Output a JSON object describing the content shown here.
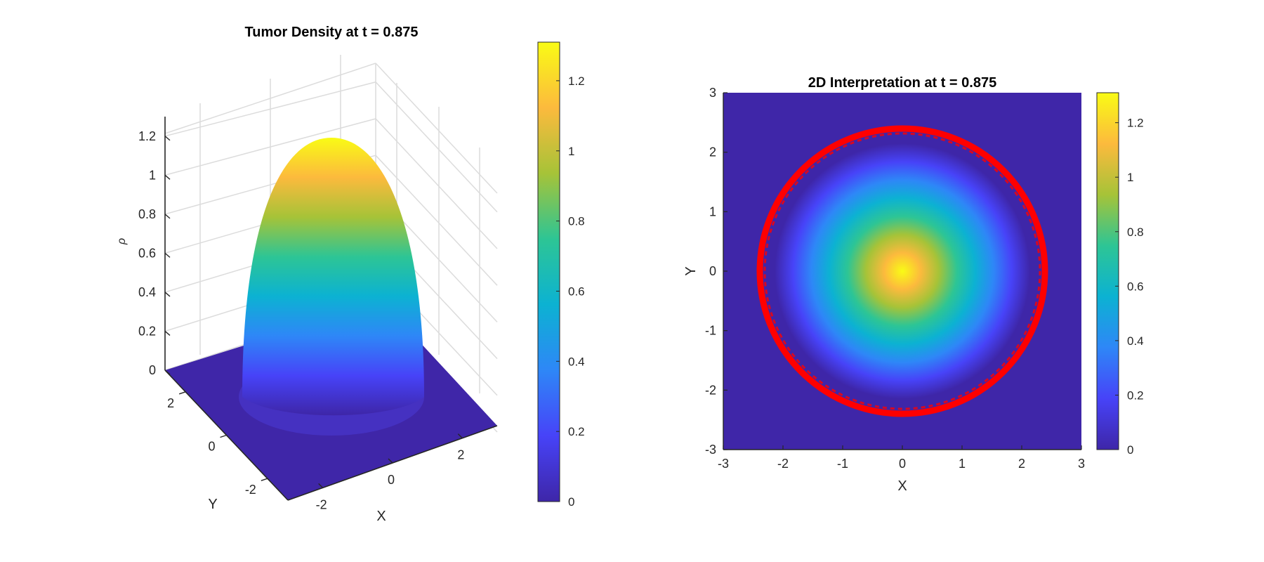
{
  "chart_data": [
    {
      "type": "surface",
      "title": "Tumor Density at t = 0.875",
      "xlabel": "X",
      "ylabel": "Y",
      "zlabel": "ρ",
      "xlim": [
        -3,
        3
      ],
      "ylim": [
        -3,
        3
      ],
      "zlim": [
        0,
        1.3
      ],
      "xticks": [
        -2,
        0,
        2
      ],
      "yticks": [
        -2,
        0,
        2
      ],
      "zticks": [
        0,
        0.2,
        0.4,
        0.6,
        0.8,
        1,
        1.2
      ],
      "xtick_labels": [
        "-2",
        "0",
        "2"
      ],
      "ytick_labels": [
        "-2",
        "0",
        "2"
      ],
      "ztick_labels": [
        "0",
        "0.2",
        "0.4",
        "0.6",
        "0.8",
        "1",
        "1.2"
      ],
      "grid": true,
      "surface": {
        "shape": "paraboloid",
        "peak": 1.31,
        "peak_at": [
          0,
          0
        ],
        "support_radius": 2.4
      },
      "colormap": "parula",
      "colorbar": {
        "ticks": [
          0,
          0.2,
          0.4,
          0.6,
          0.8,
          1,
          1.2
        ],
        "labels": [
          "0",
          "0.2",
          "0.4",
          "0.6",
          "0.8",
          "1",
          "1.2"
        ],
        "range": [
          0,
          1.31
        ]
      }
    },
    {
      "type": "heatmap",
      "title": "2D Interpretation at t = 0.875",
      "xlabel": "X",
      "ylabel": "Y",
      "xlim": [
        -3,
        3
      ],
      "ylim": [
        -3,
        3
      ],
      "xticks": [
        -3,
        -2,
        -1,
        0,
        1,
        2,
        3
      ],
      "yticks": [
        -3,
        -2,
        -1,
        0,
        1,
        2,
        3
      ],
      "xtick_labels": [
        "-3",
        "-2",
        "-1",
        "0",
        "1",
        "2",
        "3"
      ],
      "ytick_labels": [
        "-3",
        "-2",
        "-1",
        "0",
        "1",
        "2",
        "3"
      ],
      "grid": false,
      "field": {
        "shape": "paraboloid",
        "peak": 1.31,
        "peak_at": [
          0,
          0
        ],
        "support_radius": 2.4
      },
      "boundary_contour": {
        "color": "#ff0000",
        "radius": 2.4,
        "center": [
          0,
          0
        ]
      },
      "colormap": "parula",
      "colorbar": {
        "ticks": [
          0,
          0.2,
          0.4,
          0.6,
          0.8,
          1,
          1.2
        ],
        "labels": [
          "0",
          "0.2",
          "0.4",
          "0.6",
          "0.8",
          "1",
          "1.2"
        ],
        "range": [
          0,
          1.31
        ]
      }
    }
  ],
  "colors": {
    "parula": [
      "#3e26a8",
      "#4743f8",
      "#2e87f7",
      "#0cb2d2",
      "#2dc595",
      "#a6c338",
      "#fcba3d",
      "#f9fb15"
    ],
    "background_field": "#3f26a8",
    "grid": "#dfdfdf",
    "axis": "#262626",
    "boundary": "#ff0000"
  }
}
